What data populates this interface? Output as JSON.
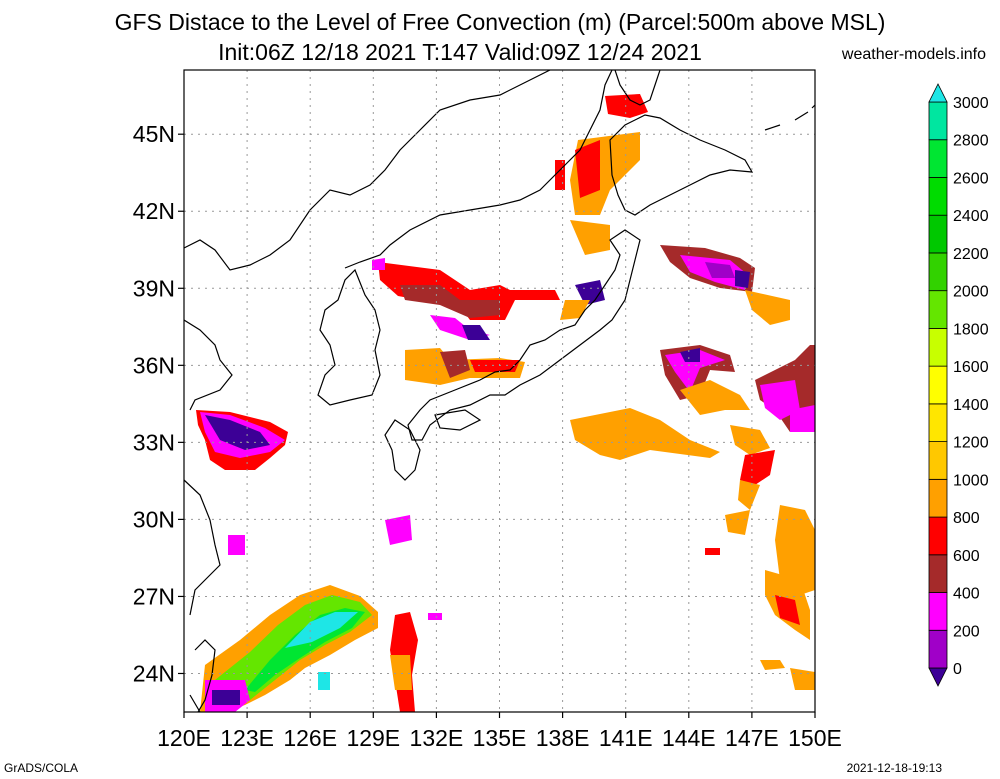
{
  "title": "GFS Distace to the Level of Free Convection (m) (Parcel:500m above MSL)",
  "subtitle": "Init:06Z 12/18 2021 T:147 Valid:09Z 12/24 2021",
  "site": "weather-models.info",
  "footer_left": "GrADS/COLA",
  "footer_right": "2021-12-18-19:13",
  "map": {
    "lon_range": [
      120,
      150
    ],
    "lat_range": [
      22.5,
      47.5
    ],
    "lon_ticks": [
      120,
      123,
      126,
      129,
      132,
      135,
      138,
      141,
      144,
      147,
      150
    ],
    "lon_labels": [
      "120E",
      "123E",
      "126E",
      "129E",
      "132E",
      "135E",
      "138E",
      "141E",
      "144E",
      "147E",
      "150E"
    ],
    "lat_ticks": [
      24,
      27,
      30,
      33,
      36,
      39,
      42,
      45
    ],
    "lat_labels": [
      "24N",
      "27N",
      "30N",
      "33N",
      "36N",
      "39N",
      "42N",
      "45N"
    ],
    "grid": "dotted"
  },
  "colorbar": {
    "levels": [
      0,
      200,
      400,
      600,
      800,
      1000,
      1200,
      1400,
      1600,
      1800,
      2000,
      2200,
      2400,
      2600,
      2800,
      3000
    ],
    "labels": [
      "0",
      "200",
      "400",
      "600",
      "800",
      "1000",
      "1200",
      "1400",
      "1600",
      "1800",
      "2000",
      "2200",
      "2400",
      "2600",
      "2800",
      "3000"
    ],
    "colors": [
      "#a000c8",
      "#ff00ff",
      "#a52a2a",
      "#ff0000",
      "#ffa000",
      "#ffc800",
      "#ffe600",
      "#ffff00",
      "#c8ff00",
      "#64e600",
      "#32d200",
      "#00c800",
      "#00dc00",
      "#00e632",
      "#00e6a0",
      "#00ffe0"
    ],
    "under_color": "#3c0096",
    "over_color": "#1ee6e6"
  }
}
